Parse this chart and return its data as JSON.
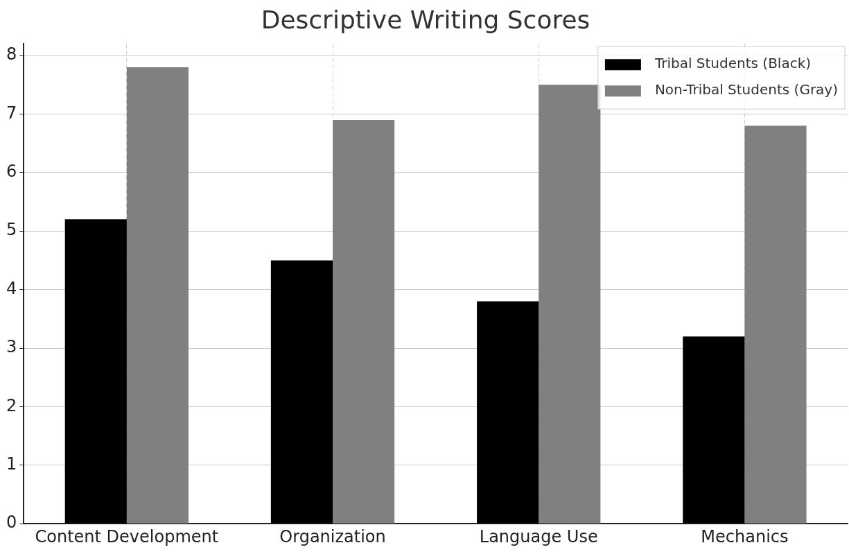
{
  "chart_data": {
    "type": "bar",
    "title": "Descriptive Writing Scores",
    "categories": [
      "Content Development",
      "Organization",
      "Language Use",
      "Mechanics"
    ],
    "series": [
      {
        "name": "Tribal Students (Black)",
        "color": "#000000",
        "values": [
          5.2,
          4.5,
          3.8,
          3.2
        ]
      },
      {
        "name": "Non-Tribal Students (Gray)",
        "color": "#808080",
        "values": [
          7.8,
          6.9,
          7.5,
          6.8
        ]
      }
    ],
    "ylim": [
      0,
      8.2
    ],
    "yticks": [
      0,
      1,
      2,
      3,
      4,
      5,
      6,
      7,
      8
    ],
    "grid": true,
    "legend": "top right"
  }
}
